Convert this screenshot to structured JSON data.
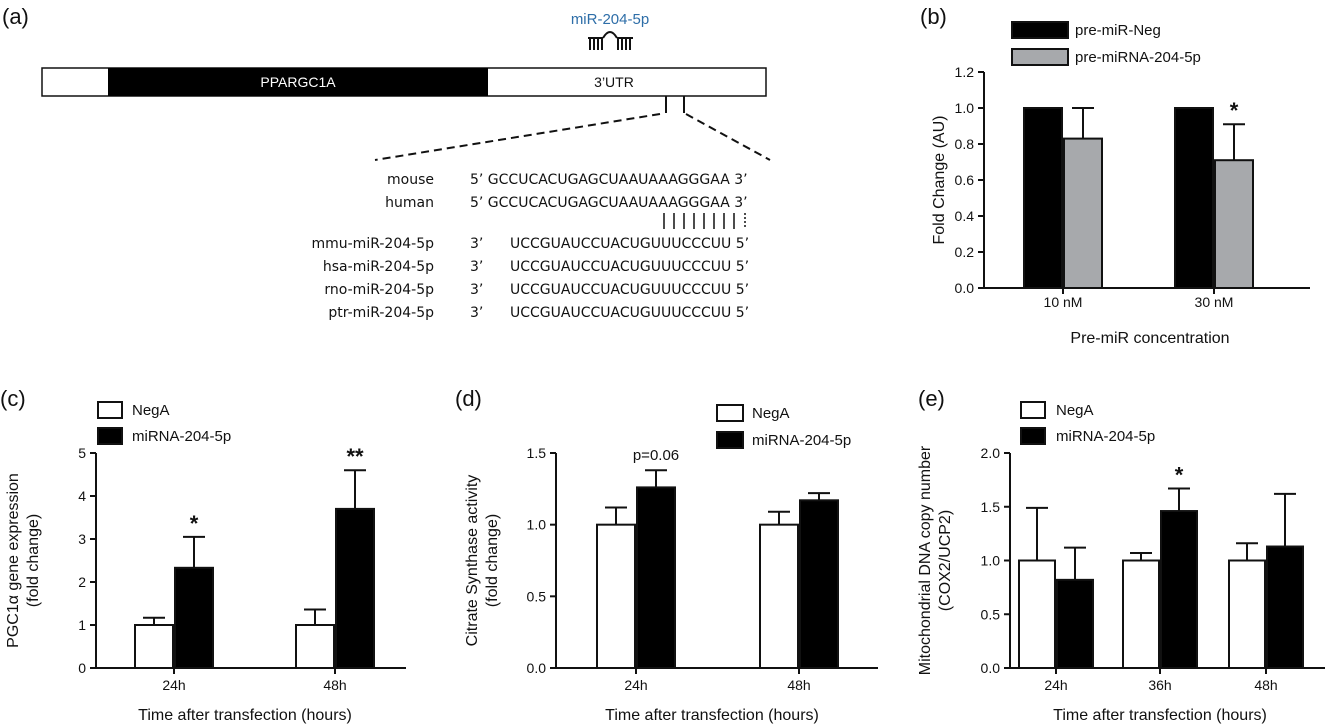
{
  "panel_a": {
    "letter": "(a)",
    "gene_label": "PPARGC1A",
    "utr_label": "3’UTR",
    "mirna_label": "miR-204-5p",
    "mirna_color": "#2e6ea8",
    "target_rows": [
      {
        "species": "mouse",
        "seq": "5’ GCCUCACUGAGCUAAUAAAGGGAA 3’"
      },
      {
        "species": "human",
        "seq": "5’ GCCUCACUGAGCUAAUAAAGGGAA 3’"
      }
    ],
    "mirna_rows": [
      {
        "name": "mmu-miR-204-5p",
        "prime": "3’",
        "seq": "UCCGUAUCCUACUGUUUCCCUU 5’"
      },
      {
        "name": "hsa-miR-204-5p",
        "prime": "3’",
        "seq": "UCCGUAUCCUACUGUUUCCCUU 5’"
      },
      {
        "name": "rno-miR-204-5p",
        "prime": "3’",
        "seq": "UCCGUAUCCUACUGUUUCCCUU 5’"
      },
      {
        "name": "ptr-miR-204-5p",
        "prime": "3’",
        "seq": "UCCGUAUCCUACUGUUUCCCUU 5’"
      }
    ]
  },
  "chart_data": [
    {
      "panel": "(b)",
      "type": "bar",
      "categories": [
        "10 nM",
        "30 nM"
      ],
      "series": [
        {
          "name": "pre-miR-Neg",
          "values": [
            1.0,
            1.0
          ],
          "errors": [
            0,
            0
          ],
          "fill": "#000000"
        },
        {
          "name": "pre-miRNA-204-5p",
          "values": [
            0.83,
            0.71
          ],
          "errors": [
            0.17,
            0.2
          ],
          "fill": "#a7a9ac"
        }
      ],
      "annotations": [
        {
          "category": 1,
          "series": 1,
          "text": "*"
        }
      ],
      "xlabel": "Pre-miR concentration",
      "ylabel": "Fold Change (AU)",
      "ylim": [
        0,
        1.2
      ],
      "yticks": [
        0.0,
        0.2,
        0.4,
        0.6,
        0.8,
        1.0,
        1.2
      ],
      "ytick_labels": [
        "0.0",
        "0.2",
        "0.4",
        "0.6",
        "0.8",
        "1.0",
        "1.2"
      ],
      "legend": "top-left"
    },
    {
      "panel": "(c)",
      "type": "bar",
      "categories": [
        "24h",
        "48h"
      ],
      "series": [
        {
          "name": "NegA",
          "values": [
            1.0,
            1.0
          ],
          "errors": [
            0.17,
            0.36
          ],
          "fill": "#ffffff"
        },
        {
          "name": "miRNA-204-5p",
          "values": [
            2.33,
            3.7
          ],
          "errors": [
            0.72,
            0.9
          ],
          "fill": "#000000"
        }
      ],
      "annotations": [
        {
          "category": 0,
          "series": 1,
          "text": "*"
        },
        {
          "category": 1,
          "series": 1,
          "text": "**"
        }
      ],
      "xlabel": "Time after transfection (hours)",
      "ylabel": [
        "PGC1α gene expression",
        "(fold change)"
      ],
      "ylim": [
        0,
        5
      ],
      "yticks": [
        0,
        1,
        2,
        3,
        4,
        5
      ],
      "ytick_labels": [
        "0",
        "1",
        "2",
        "3",
        "4",
        "5"
      ],
      "legend": "top-left"
    },
    {
      "panel": "(d)",
      "type": "bar",
      "categories": [
        "24h",
        "48h"
      ],
      "series": [
        {
          "name": "NegA",
          "values": [
            1.0,
            1.0
          ],
          "errors": [
            0.12,
            0.09
          ],
          "fill": "#ffffff"
        },
        {
          "name": "miRNA-204-5p",
          "values": [
            1.26,
            1.17
          ],
          "errors": [
            0.12,
            0.05
          ],
          "fill": "#000000"
        }
      ],
      "annotations": [
        {
          "category": 0,
          "series": 1,
          "text": "p=0.06"
        }
      ],
      "xlabel": "Time after transfection (hours)",
      "ylabel": [
        "Citrate Synthase activity",
        "(fold change)"
      ],
      "ylim": [
        0,
        1.5
      ],
      "yticks": [
        0.0,
        0.5,
        1.0,
        1.5
      ],
      "ytick_labels": [
        "0.0",
        "0.5",
        "1.0",
        "1.5"
      ],
      "legend": "top-right"
    },
    {
      "panel": "(e)",
      "type": "bar",
      "categories": [
        "24h",
        "36h",
        "48h"
      ],
      "series": [
        {
          "name": "NegA",
          "values": [
            1.0,
            1.0,
            1.0
          ],
          "errors": [
            0.49,
            0.07,
            0.16
          ],
          "fill": "#ffffff"
        },
        {
          "name": "miRNA-204-5p",
          "values": [
            0.82,
            1.46,
            1.13
          ],
          "errors": [
            0.3,
            0.21,
            0.49
          ],
          "fill": "#000000"
        }
      ],
      "annotations": [
        {
          "category": 1,
          "series": 1,
          "text": "*"
        }
      ],
      "xlabel": "Time after transfection (hours)",
      "ylabel": [
        "Mitochondrial DNA copy number",
        "(COX2/UCP2)"
      ],
      "ylim": [
        0,
        2.0
      ],
      "yticks": [
        0.0,
        0.5,
        1.0,
        1.5,
        2.0
      ],
      "ytick_labels": [
        "0.0",
        "0.5",
        "1.0",
        "1.5",
        "2.0"
      ],
      "legend": "top-left"
    }
  ]
}
